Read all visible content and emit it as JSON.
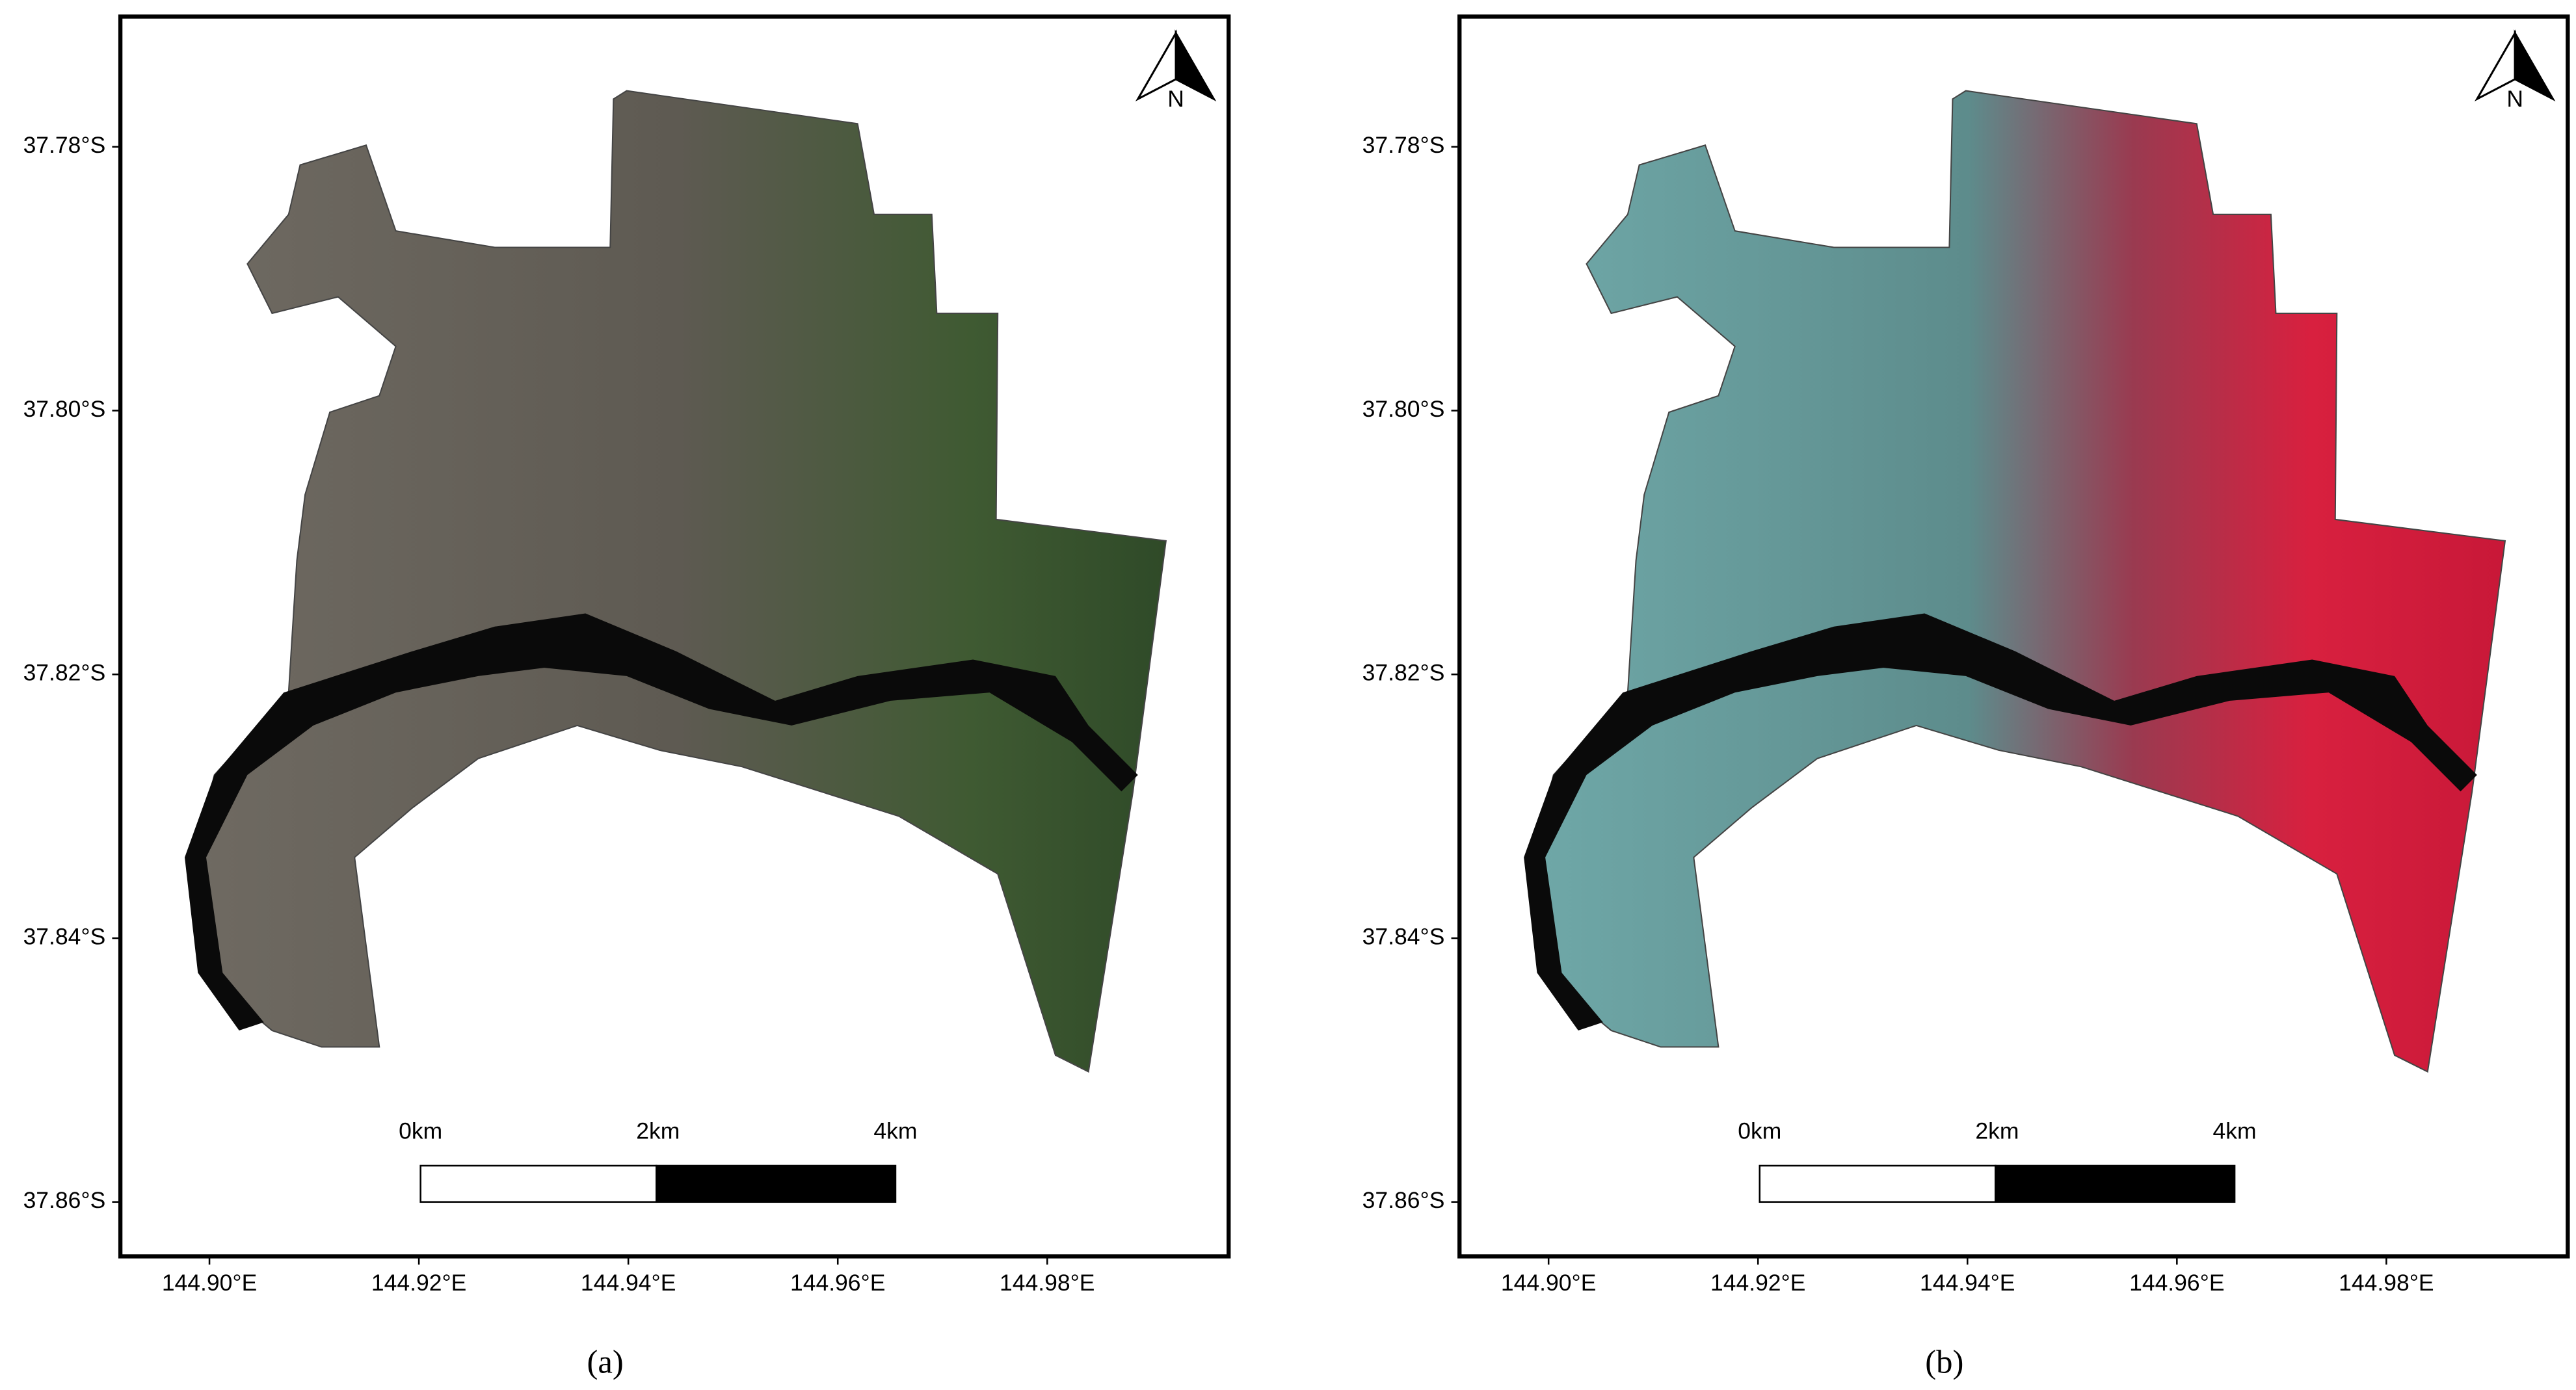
{
  "panels": [
    {
      "caption": "(a)",
      "north": "N",
      "yticks": [
        "37.78°S",
        "37.80°S",
        "37.82°S",
        "37.84°S",
        "37.86°S"
      ],
      "xticks": [
        "144.90°E",
        "144.92°E",
        "144.94°E",
        "144.96°E",
        "144.98°E"
      ],
      "scale_bar": [
        "0km",
        "2km",
        "4km"
      ]
    },
    {
      "caption": "(b)",
      "north": "N",
      "yticks": [
        "37.78°S",
        "37.80°S",
        "37.82°S",
        "37.84°S",
        "37.86°S"
      ],
      "xticks": [
        "144.90°E",
        "144.92°E",
        "144.94°E",
        "144.96°E",
        "144.98°E"
      ],
      "scale_bar": [
        "0km",
        "2km",
        "4km"
      ]
    }
  ]
}
